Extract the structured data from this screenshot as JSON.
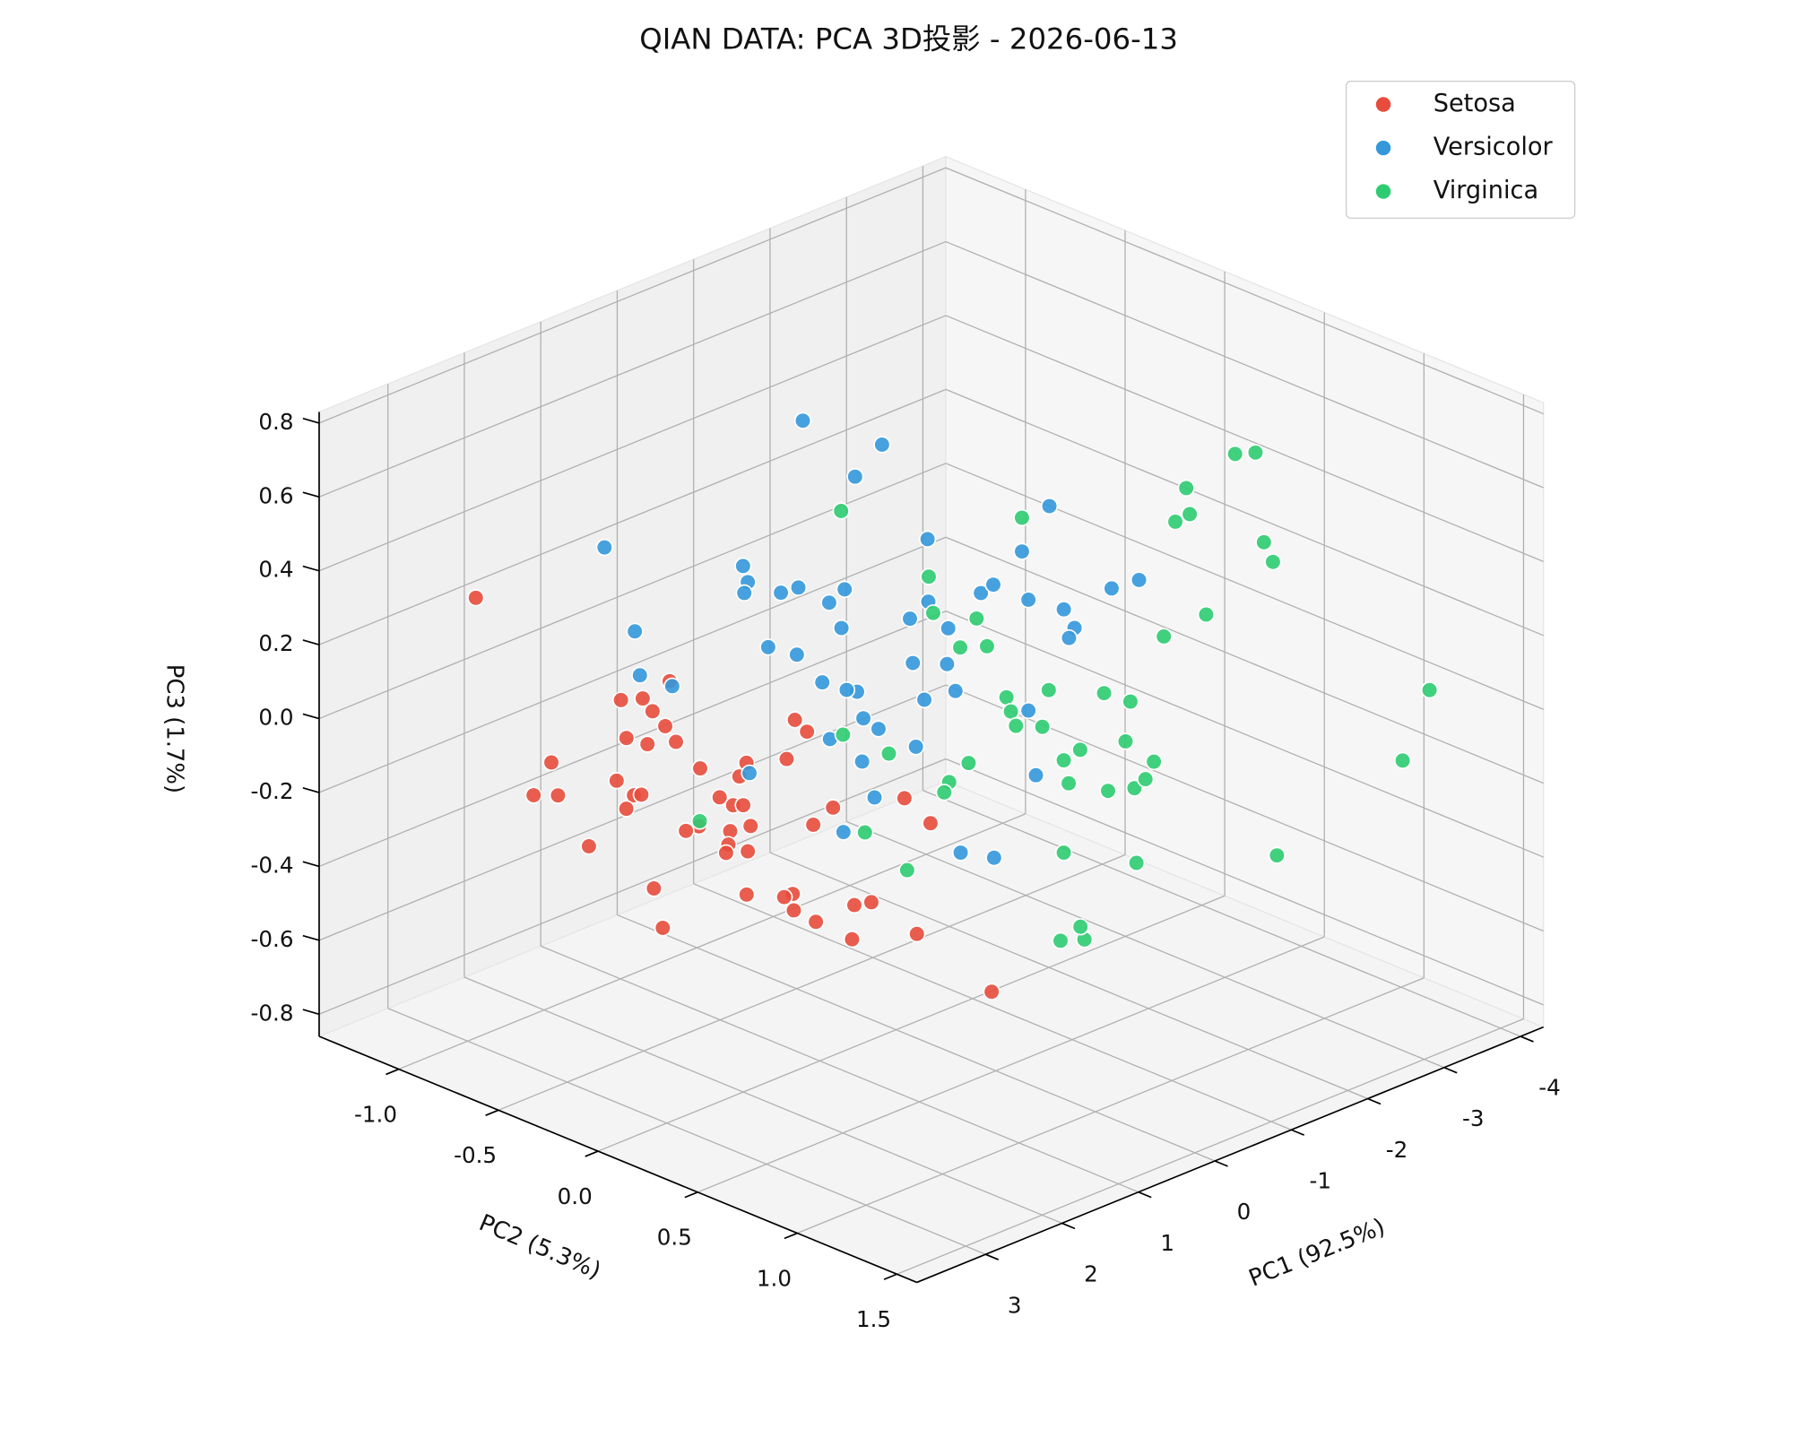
{
  "chart_data": {
    "type": "scatter3d",
    "title": "QIAN DATA: PCA 3D投影 - 2026-06-13",
    "xlabel": "PC1 (92.5%)",
    "ylabel": "PC2 (5.3%)",
    "zlabel": "PC3 (1.7%)",
    "xlim": [
      -4.3,
      3.9
    ],
    "ylim": [
      -1.4,
      1.6
    ],
    "zlim": [
      -0.86,
      0.83
    ],
    "xticks": [
      -4,
      -3,
      -2,
      -1,
      0,
      1,
      2,
      3
    ],
    "yticks": [
      {
        "value": -1,
        "label": "-1.0"
      },
      -0.5,
      {
        "value": 0,
        "label": "0.0"
      },
      0.5,
      {
        "value": 1,
        "label": "1.0"
      },
      1.5
    ],
    "zticks": [
      -0.8,
      -0.6,
      -0.4,
      -0.2,
      {
        "value": 0,
        "label": "0.0"
      },
      0.2,
      0.4,
      0.6,
      0.8
    ],
    "grid": true,
    "legend": "upper right",
    "series": [
      {
        "name": "Setosa",
        "color": "#e74c3c",
        "x": [
          2.71,
          2.65,
          2.74,
          2.69,
          2.77,
          2.63,
          2.72,
          2.68,
          2.75,
          2.66,
          2.71,
          2.73,
          2.64,
          2.7,
          2.76,
          2.67,
          2.69,
          2.72,
          2.65,
          2.74,
          2.7,
          2.68,
          2.73,
          2.66,
          2.71,
          2.75,
          2.64,
          2.69,
          2.72,
          2.67,
          2.7,
          2.74,
          2.66,
          2.71,
          2.68,
          2.73,
          2.65,
          2.7,
          2.76,
          2.69,
          2.72,
          2.64,
          2.71,
          2.67,
          2.74,
          2.7,
          2.68,
          2.73,
          2.66
        ],
        "y": [
          -1.07,
          -0.12,
          -0.33,
          -0.24,
          -0.16,
          -0.15,
          -0.31,
          -0.22,
          -0.05,
          -0.71,
          -0.78,
          -0.65,
          -0.39,
          -0.28,
          -0.22,
          -0.33,
          -0.51,
          0.06,
          0.23,
          0.3,
          0.15,
          0.21,
          0.28,
          0.29,
          0.05,
          0.0,
          0.18,
          0.19,
          0.19,
          0.28,
          -0.18,
          -0.12,
          0.27,
          0.49,
          0.52,
          0.6,
          0.7,
          0.62,
          0.54,
          0.47,
          0.53,
          0.61,
          0.83,
          0.9,
          0.83,
          1.14,
          1.07,
          1.22,
          1.5
        ],
        "z": [
          0.3,
          0.28,
          0.19,
          0.21,
          0.2,
          0.15,
          0.09,
          0.09,
          0.14,
          -0.07,
          -0.17,
          -0.14,
          -0.05,
          -0.06,
          -0.04,
          -0.11,
          -0.25,
          0.09,
          0.1,
          0.16,
          0.03,
          0.02,
          0.04,
          -0.02,
          -0.07,
          -0.09,
          -0.06,
          -0.09,
          -0.11,
          -0.09,
          -0.29,
          -0.38,
          -0.21,
          0.21,
          0.32,
          0.31,
          0.12,
          0.06,
          -0.14,
          -0.17,
          -0.19,
          -0.21,
          -0.11,
          -0.09,
          -0.2,
          -0.12,
          0.23,
          0.2,
          -0.2
        ]
      },
      {
        "name": "Versicolor",
        "color": "#3498db",
        "x": [
          -0.5,
          -0.52,
          -0.48,
          1.0,
          1.02,
          0.98,
          1.0,
          -0.5,
          -0.51,
          -0.49,
          -0.5,
          -0.52,
          -0.48,
          -0.5,
          -0.51,
          -0.49,
          -0.5,
          -0.52,
          -0.48,
          -0.5,
          -0.51,
          -0.49,
          -0.5,
          -0.52,
          -0.48,
          -0.5,
          -0.51,
          -0.49,
          -0.5,
          -0.52,
          -0.48,
          -0.5,
          -0.51,
          -0.49,
          -0.5,
          -0.52,
          -0.48,
          -0.5,
          -0.51,
          -0.49,
          -0.5,
          -0.52,
          -0.48,
          -0.5,
          -0.51,
          -0.49,
          -0.5,
          -0.52,
          -0.48,
          -0.5
        ],
        "y": [
          -0.66,
          -0.27,
          -0.39,
          -1.08,
          -0.92,
          -0.91,
          -0.74,
          -0.96,
          -0.94,
          -0.95,
          -0.77,
          -0.69,
          -0.52,
          -0.45,
          -0.47,
          -0.83,
          -0.69,
          -0.57,
          -0.38,
          -0.44,
          -0.36,
          -0.52,
          -0.28,
          -0.37,
          -0.92,
          -0.3,
          -0.46,
          -0.03,
          -0.03,
          -0.13,
          -0.1,
          0.07,
          0.06,
          0.11,
          -0.05,
          -0.1,
          0.14,
          0.3,
          0.23,
          0.3,
          0.44,
          0.57,
          0.48,
          0.65,
          0.7,
          0.68,
          0.89,
          1.02,
          0.48,
          0.51
        ],
        "z": [
          0.6,
          0.62,
          0.51,
          0.29,
          0.1,
          -0.02,
          -0.01,
          0.14,
          0.1,
          0.07,
          0.11,
          0.14,
          0.14,
          0.19,
          0.08,
          -0.05,
          -0.04,
          -0.09,
          -0.07,
          -0.08,
          -0.14,
          -0.23,
          -0.15,
          -0.26,
          -0.41,
          -0.34,
          -0.47,
          0.42,
          0.25,
          0.18,
          0.07,
          0.2,
          0.1,
          0.04,
          -0.02,
          -0.16,
          -0.39,
          -0.37,
          0.33,
          0.37,
          0.49,
          0.64,
          0.37,
          0.38,
          0.34,
          0.31,
          0.49,
          0.54,
          0.07,
          -0.1
        ]
      },
      {
        "name": "Virginica",
        "color": "#2ecc71",
        "x": [
          -2.2,
          1.5,
          -2.2,
          -2.18,
          -2.22,
          -2.2,
          -2.18,
          -2.22,
          -1.0,
          -1.0,
          -1.0,
          -1.5,
          -2.2,
          -2.18,
          -2.22,
          -2.2,
          -2.18,
          -2.22,
          -2.2,
          -2.18,
          -2.22,
          -2.2,
          -2.18,
          -2.22,
          -1.5,
          -1.5,
          -1.5,
          -2.2,
          -2.18,
          -2.22,
          -2.2,
          -2.18,
          -2.22,
          -2.2,
          -2.18,
          -2.22,
          -2.2,
          -2.18,
          -2.22,
          -2.2,
          -2.18,
          -2.22,
          -2.2,
          -2.18,
          -2.22,
          -3.8,
          -3.5
        ],
        "y": [
          -1.12,
          -0.41,
          -0.68,
          -0.65,
          -0.53,
          -0.44,
          -0.38,
          -0.22,
          -0.65,
          -0.42,
          -0.54,
          -0.52,
          -0.48,
          -0.57,
          -0.61,
          -0.29,
          -0.26,
          -0.25,
          -0.11,
          -0.07,
          -0.01,
          0.08,
          0.03,
          -0.01,
          0.25,
          0.37,
          0.35,
          0.2,
          0.34,
          0.3,
          0.22,
          0.36,
          0.4,
          0.45,
          0.37,
          1.06,
          0.5,
          0.72,
          0.55,
          0.63,
          0.62,
          0.85,
          0.96,
          1.01,
          1.04,
          1.22,
          1.2
        ],
        "z": [
          0.11,
          -0.26,
          0.03,
          -0.06,
          -0.13,
          -0.03,
          -0.09,
          0.29,
          -0.29,
          -0.29,
          -0.53,
          -0.67,
          -0.43,
          -0.5,
          -0.54,
          -0.21,
          -0.24,
          -0.28,
          -0.25,
          -0.14,
          -0.32,
          -0.27,
          -0.37,
          -0.57,
          -0.69,
          -0.66,
          -0.63,
          -0.09,
          -0.08,
          -0.2,
          -0.35,
          -0.31,
          -0.28,
          -0.22,
          -0.51,
          -0.34,
          0.13,
          0.24,
          0.45,
          0.49,
          0.56,
          0.7,
          0.73,
          0.5,
          0.45,
          0.01,
          -0.16
        ]
      }
    ]
  }
}
